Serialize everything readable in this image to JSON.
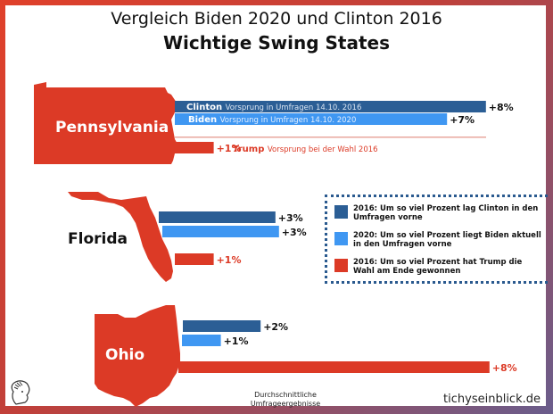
{
  "title": "Vergleich Biden 2020 und Clinton 2016",
  "subtitle": "Wichtige Swing States",
  "colors": {
    "clinton": "#2b5e95",
    "biden": "#3f97f2",
    "trump": "#dc3a26",
    "trump_label": "#dc3a26",
    "frame_start": "#e0402a",
    "frame_end": "#6a5d8c"
  },
  "bar_labels": {
    "clinton_name": "Clinton",
    "clinton_desc": "Vorsprung in Umfragen 14.10. 2016",
    "biden_name": "Biden",
    "biden_desc": "Vorsprung in Umfragen 14.10. 2020",
    "trump_name": "Trump",
    "trump_desc": "Vorsprung bei der Wahl 2016"
  },
  "legend": [
    {
      "color_key": "clinton",
      "text": "2016: Um so viel Prozent lag Clinton in den Umfragen vorne"
    },
    {
      "color_key": "biden",
      "text": "2020: Um so viel Prozent liegt Biden aktuell in den Umfragen vorne"
    },
    {
      "color_key": "trump",
      "text": "2016: Um so viel Prozent hat Trump die Wahl am Ende gewonnen"
    }
  ],
  "footer": {
    "note_line1": "Durchschnittliche",
    "note_line2": "Umfrageergebnisse",
    "brand": "tichyseinblick.de"
  },
  "icons": {
    "logo": "classical-head-logo-icon"
  },
  "chart_data": {
    "type": "bar",
    "orientation": "horizontal",
    "title": "Vergleich Biden 2020 und Clinton 2016",
    "subtitle": "Wichtige Swing States",
    "unit": "%",
    "categories": [
      "Pennsylvania",
      "Florida",
      "Ohio"
    ],
    "series": [
      {
        "name": "Clinton Vorsprung in Umfragen 14.10. 2016",
        "key": "clinton",
        "values": [
          8,
          3,
          2
        ],
        "labels": [
          "+8%",
          "+3%",
          "+2%"
        ]
      },
      {
        "name": "Biden Vorsprung in Umfragen 14.10. 2020",
        "key": "biden",
        "values": [
          7,
          3,
          1
        ],
        "labels": [
          "+7%",
          "+3%",
          "+1%"
        ]
      },
      {
        "name": "Trump Vorsprung bei der Wahl 2016",
        "key": "trump",
        "values": [
          1,
          1,
          8
        ],
        "labels": [
          "+1%",
          "+1%",
          "+8%"
        ]
      }
    ],
    "legend_position": "right"
  }
}
